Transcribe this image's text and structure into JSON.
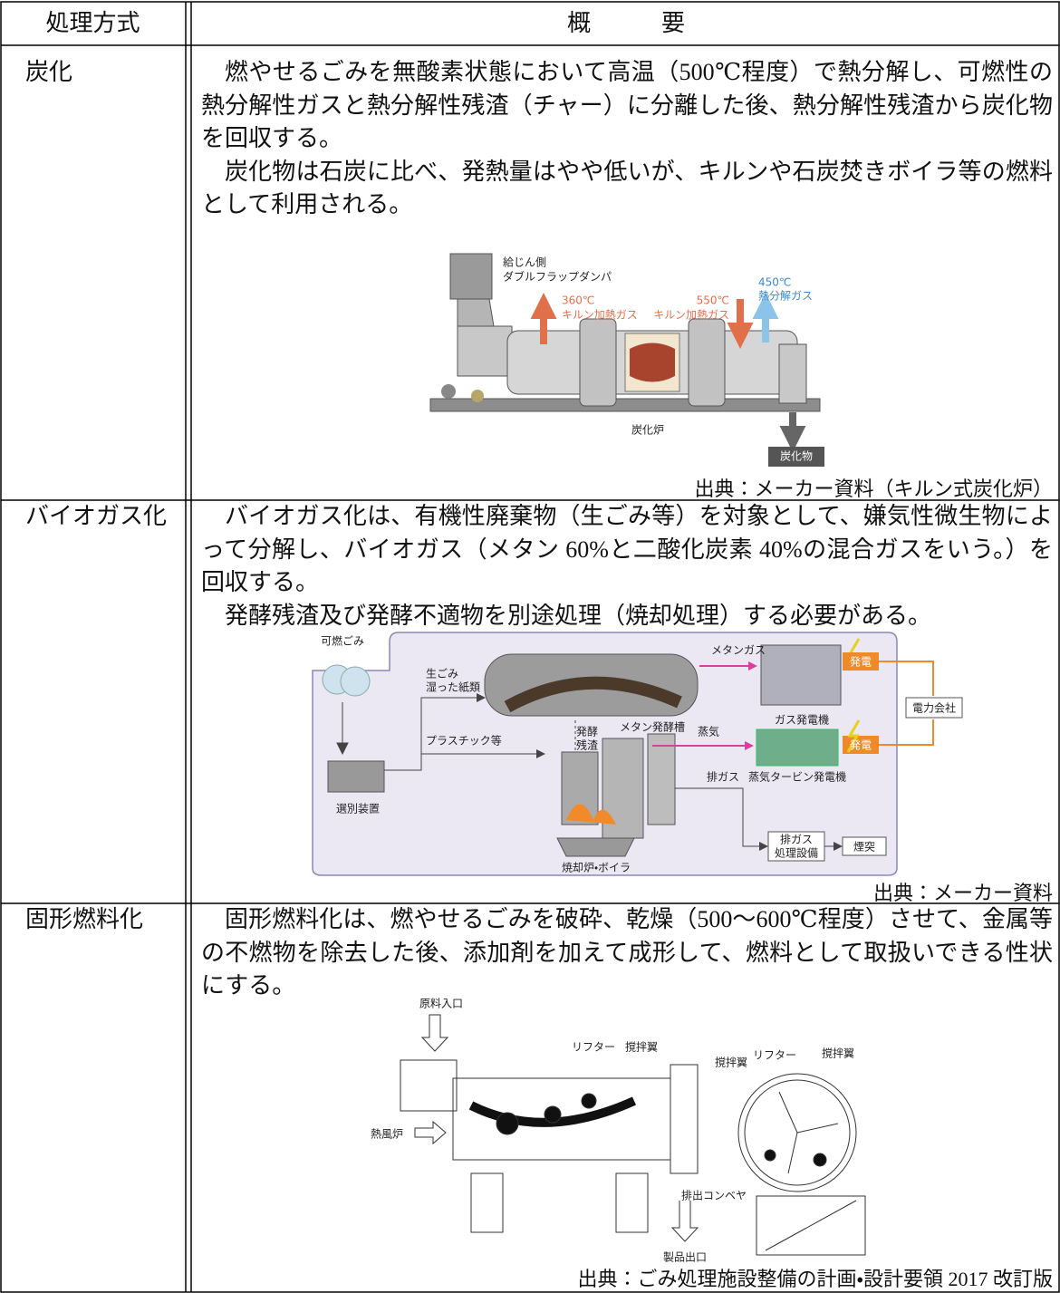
{
  "table": {
    "header": [
      "処理方式",
      "概　　　要"
    ],
    "rows": [
      {
        "method": "炭化",
        "paragraphs": [
          "燃やせるごみを無酸素状態において高温（500℃程度）で熱分解し、可燃性の熱分解性ガスと熱分解性残渣（チャー）に分離した後、熱分解性残渣から炭化物を回収する。",
          "炭化物は石炭に比べ、発熱量はやや低いが、キルンや石炭焚きボイラ等の燃料として利用される。"
        ],
        "figure": {
          "labels": [
            "給じん側",
            "ダブルフラップダンパ",
            "360℃",
            "キルン加熱ガス",
            "550℃",
            "キルン加熱ガス",
            "450℃",
            "熱分解ガス",
            "炭化炉",
            "炭化物"
          ]
        },
        "source": "出典：メーカー資料（キルン式炭化炉）"
      },
      {
        "method": "バイオガス化",
        "paragraphs": [
          "バイオガス化は、有機性廃棄物（生ごみ等）を対象として、嫌気性微生物によって分解し、バイオガス（メタン 60%と二酸化炭素 40%の混合ガスをいう。）を回収する。",
          "発酵残渣及び発酵不適物を別途処理（焼却処理）する必要がある。"
        ],
        "figure": {
          "labels": [
            "可燃ごみ",
            "生ごみ",
            "湿った紙類",
            "メタンガス",
            "メタン発酵槽",
            "発電",
            "ガス発電機",
            "電力会社",
            "発酵",
            "残渣",
            "蒸気",
            "発電",
            "蒸気タービン発電機",
            "プラスチック等",
            "選別装置",
            "排ガス",
            "排ガス",
            "処理設備",
            "煙突",
            "焼却炉・ボイラ"
          ]
        },
        "source": "出典：メーカー資料"
      },
      {
        "method": "固形燃料化",
        "paragraphs": [
          "固形燃料化は、燃やせるごみを破砕、乾燥（500～600℃程度）させて、金属等の不燃物を除去した後、添加剤を加えて成形して、燃料として取扱いできる性状にする。"
        ],
        "figure": {
          "labels": [
            "原料入口",
            "リフター",
            "撹拌翼",
            "熱風炉",
            "排出コンベヤ",
            "製品出口",
            "撹拌翼",
            "リフター",
            "撹拌翼"
          ]
        },
        "source": "出典：ごみ処理施設整備の計画・設計要領 2017 改訂版"
      }
    ]
  }
}
